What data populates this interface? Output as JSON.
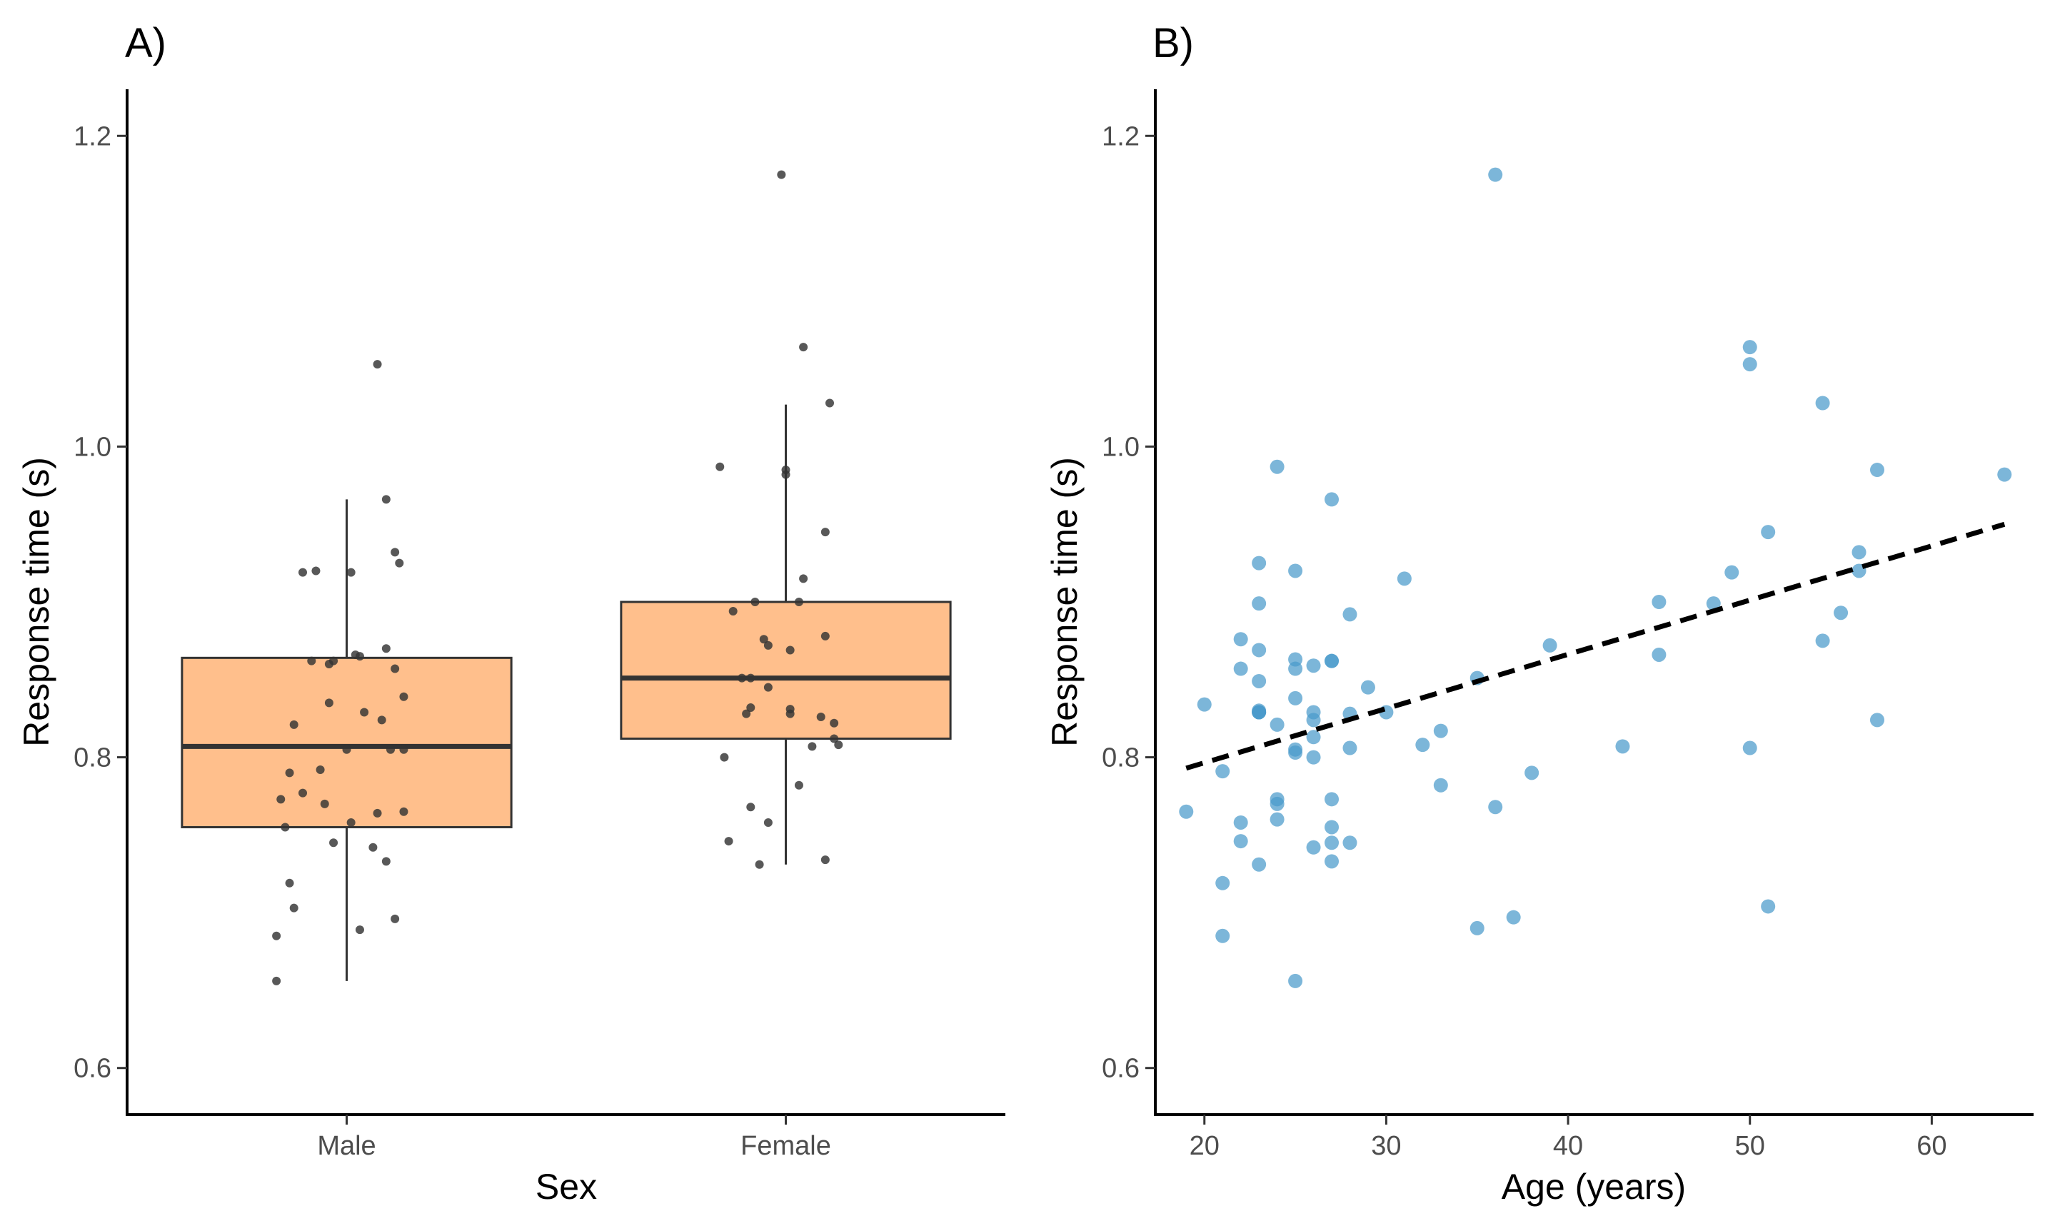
{
  "figure": {
    "panels": [
      "A)",
      "B)"
    ]
  },
  "chart_data": [
    {
      "type": "box",
      "panel_label": "A)",
      "title": "",
      "xlabel": "Sex",
      "ylabel": "Response time (s)",
      "ylim": [
        0.57,
        1.23
      ],
      "yticks": [
        0.6,
        0.8,
        1.0,
        1.2
      ],
      "ytick_labels": [
        "0.6",
        "0.8",
        "1.0",
        "1.2"
      ],
      "categories": [
        "Male",
        "Female"
      ],
      "box_fill": "#ffbf8c",
      "point_color": "#333333",
      "boxes": [
        {
          "category": "Male",
          "whisker_low": 0.656,
          "q1": 0.755,
          "median": 0.807,
          "q3": 0.864,
          "whisker_high": 0.966
        },
        {
          "category": "Female",
          "whisker_low": 0.731,
          "q1": 0.812,
          "median": 0.851,
          "q3": 0.9,
          "whisker_high": 1.027
        }
      ],
      "points": [
        {
          "category": "Male",
          "jitter": [
            -0.16,
            -0.16,
            -0.12,
            -0.13,
            -0.14,
            -0.15,
            -0.13,
            -0.1,
            -0.06,
            -0.12,
            -0.04,
            -0.08,
            -0.03,
            -0.04,
            -0.1,
            -0.07,
            0.07,
            0.01,
            0.03,
            0.02,
            0.04,
            0.08,
            0.09,
            0.11,
            0.09,
            0.11,
            0.12,
            0.13,
            0.1,
            0.13,
            0.07,
            0.13,
            0.01,
            0.0,
            0.06,
            -0.03,
            -0.05,
            0.03,
            0.09,
            0.11
          ],
          "values": [
            0.656,
            0.685,
            0.703,
            0.719,
            0.755,
            0.773,
            0.79,
            0.777,
            0.792,
            0.821,
            0.835,
            0.862,
            0.862,
            0.86,
            0.919,
            0.92,
            1.053,
            0.919,
            0.865,
            0.866,
            0.829,
            0.824,
            0.87,
            0.857,
            0.966,
            0.932,
            0.925,
            0.839,
            0.805,
            0.805,
            0.764,
            0.765,
            0.758,
            0.805,
            0.742,
            0.745,
            0.77,
            0.689,
            0.733,
            0.696
          ]
        },
        {
          "category": "Female",
          "jitter": [
            -0.01,
            0.04,
            -0.15,
            -0.12,
            -0.14,
            -0.08,
            -0.13,
            -0.1,
            -0.05,
            -0.04,
            -0.09,
            0.01,
            0.0,
            0.0,
            0.1,
            0.09,
            0.04,
            0.03,
            0.01,
            0.09,
            0.12,
            0.11,
            -0.08,
            -0.04,
            0.01,
            0.08,
            0.06,
            0.03,
            0.09,
            -0.04,
            -0.06,
            -0.07,
            -0.08,
            0.11
          ],
          "values": [
            1.175,
            1.064,
            0.987,
            0.894,
            0.8,
            0.768,
            0.746,
            0.851,
            0.876,
            0.872,
            0.828,
            0.828,
            0.982,
            0.985,
            1.028,
            0.945,
            0.915,
            0.9,
            0.869,
            0.878,
            0.808,
            0.822,
            0.832,
            0.845,
            0.831,
            0.826,
            0.807,
            0.782,
            0.734,
            0.758,
            0.731,
            0.9,
            0.851,
            0.812
          ]
        }
      ]
    },
    {
      "type": "scatter",
      "panel_label": "B)",
      "title": "",
      "xlabel": "Age (years)",
      "ylabel": "Response time (s)",
      "xlim": [
        17.3,
        65.6
      ],
      "ylim": [
        0.57,
        1.23
      ],
      "xticks": [
        20,
        30,
        40,
        50,
        60
      ],
      "xtick_labels": [
        "20",
        "30",
        "40",
        "50",
        "60"
      ],
      "yticks": [
        0.6,
        0.8,
        1.0,
        1.2
      ],
      "ytick_labels": [
        "0.6",
        "0.8",
        "1.0",
        "1.2"
      ],
      "point_color": "#4a9acb",
      "line_color": "#000000",
      "regression_line": {
        "x": [
          19,
          64
        ],
        "y": [
          0.793,
          0.95
        ],
        "style": "dashed"
      },
      "x": [
        19,
        20,
        21,
        21,
        21,
        22,
        22,
        22,
        22,
        23,
        23,
        23,
        23,
        23,
        23,
        23,
        23,
        23,
        24,
        24,
        24,
        24,
        24,
        25,
        25,
        25,
        25,
        25,
        25,
        25,
        26,
        26,
        26,
        26,
        26,
        26,
        27,
        27,
        27,
        27,
        27,
        27,
        27,
        28,
        28,
        28,
        28,
        29,
        30,
        31,
        32,
        33,
        33,
        35,
        35,
        36,
        36,
        37,
        38,
        39,
        43,
        45,
        45,
        48,
        49,
        50,
        50,
        50,
        51,
        51,
        54,
        54,
        55,
        56,
        56,
        57,
        57,
        64
      ],
      "y": [
        0.765,
        0.834,
        0.685,
        0.719,
        0.791,
        0.876,
        0.857,
        0.758,
        0.746,
        0.925,
        0.899,
        0.869,
        0.849,
        0.829,
        0.83,
        0.731,
        0.829,
        0.829,
        0.987,
        0.821,
        0.773,
        0.77,
        0.76,
        0.92,
        0.863,
        0.857,
        0.838,
        0.805,
        0.803,
        0.656,
        0.859,
        0.829,
        0.824,
        0.813,
        0.8,
        0.742,
        0.966,
        0.862,
        0.862,
        0.773,
        0.755,
        0.745,
        0.733,
        0.892,
        0.828,
        0.806,
        0.745,
        0.845,
        0.829,
        0.915,
        0.808,
        0.817,
        0.782,
        0.851,
        0.69,
        1.175,
        0.768,
        0.697,
        0.79,
        0.872,
        0.807,
        0.9,
        0.866,
        0.899,
        0.919,
        1.064,
        1.053,
        0.806,
        0.945,
        0.704,
        1.028,
        0.875,
        0.893,
        0.932,
        0.92,
        0.985,
        0.824,
        0.982
      ]
    }
  ]
}
